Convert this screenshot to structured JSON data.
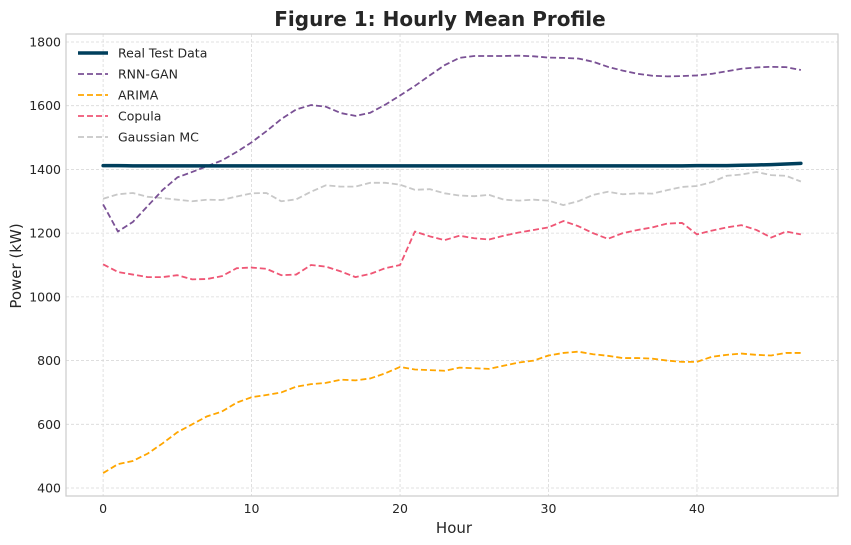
{
  "chart_data": {
    "type": "line",
    "title": "Figure 1: Hourly Mean Profile",
    "xlabel": "Hour",
    "ylabel": "Power (kW)",
    "xlim": [
      -2.5,
      49.5
    ],
    "ylim": [
      375,
      1825
    ],
    "xticks": [
      0,
      10,
      20,
      30,
      40
    ],
    "yticks": [
      400,
      600,
      800,
      1000,
      1200,
      1400,
      1600,
      1800
    ],
    "grid": true,
    "legend_position": "upper-left",
    "x": [
      0,
      1,
      2,
      3,
      4,
      5,
      6,
      7,
      8,
      9,
      10,
      11,
      12,
      13,
      14,
      15,
      16,
      17,
      18,
      19,
      20,
      21,
      22,
      23,
      24,
      25,
      26,
      27,
      28,
      29,
      30,
      31,
      32,
      33,
      34,
      35,
      36,
      37,
      38,
      39,
      40,
      41,
      42,
      43,
      44,
      45,
      46,
      47
    ],
    "series": [
      {
        "name": "Real Test Data",
        "color": "#003f5c",
        "style": "solid",
        "width": 3.5,
        "values": [
          1412,
          1412,
          1411,
          1411,
          1411,
          1411,
          1411,
          1411,
          1411,
          1411,
          1411,
          1411,
          1411,
          1411,
          1411,
          1411,
          1411,
          1411,
          1411,
          1411,
          1411,
          1411,
          1411,
          1411,
          1411,
          1411,
          1411,
          1411,
          1411,
          1411,
          1411,
          1411,
          1411,
          1411,
          1411,
          1411,
          1411,
          1411,
          1411,
          1411,
          1412,
          1412,
          1412,
          1413,
          1414,
          1415,
          1417,
          1419
        ]
      },
      {
        "name": "RNN-GAN",
        "color": "#7a5195",
        "style": "dashed",
        "width": 1.8,
        "values": [
          1290,
          1205,
          1235,
          1285,
          1335,
          1375,
          1392,
          1410,
          1428,
          1455,
          1485,
          1520,
          1558,
          1588,
          1602,
          1597,
          1577,
          1568,
          1578,
          1603,
          1632,
          1662,
          1695,
          1727,
          1750,
          1756,
          1756,
          1756,
          1757,
          1755,
          1751,
          1750,
          1748,
          1738,
          1722,
          1710,
          1700,
          1694,
          1692,
          1693,
          1695,
          1700,
          1708,
          1716,
          1720,
          1722,
          1721,
          1712
        ]
      },
      {
        "name": "ARIMA",
        "color": "#ffa600",
        "style": "dashed",
        "width": 1.8,
        "values": [
          447,
          475,
          485,
          508,
          540,
          575,
          600,
          625,
          640,
          668,
          685,
          692,
          700,
          718,
          726,
          730,
          740,
          738,
          744,
          760,
          780,
          772,
          770,
          768,
          778,
          776,
          774,
          784,
          794,
          800,
          816,
          824,
          828,
          820,
          815,
          808,
          808,
          806,
          800,
          796,
          796,
          812,
          818,
          822,
          818,
          816,
          824,
          824
        ]
      },
      {
        "name": "Copula",
        "color": "#ef5675",
        "style": "dashed",
        "width": 1.8,
        "values": [
          1102,
          1078,
          1070,
          1062,
          1062,
          1068,
          1055,
          1056,
          1065,
          1090,
          1092,
          1088,
          1068,
          1070,
          1100,
          1095,
          1080,
          1062,
          1072,
          1090,
          1100,
          1205,
          1190,
          1178,
          1192,
          1184,
          1180,
          1192,
          1202,
          1210,
          1218,
          1238,
          1222,
          1200,
          1182,
          1200,
          1210,
          1218,
          1230,
          1232,
          1196,
          1208,
          1218,
          1225,
          1210,
          1186,
          1205,
          1196
        ]
      },
      {
        "name": "Gaussian MC",
        "color": "#c8c8c8",
        "style": "dashed",
        "width": 1.8,
        "values": [
          1308,
          1322,
          1326,
          1314,
          1310,
          1305,
          1300,
          1305,
          1304,
          1315,
          1325,
          1326,
          1300,
          1306,
          1330,
          1350,
          1346,
          1346,
          1358,
          1358,
          1352,
          1336,
          1338,
          1325,
          1318,
          1316,
          1320,
          1305,
          1302,
          1305,
          1302,
          1288,
          1300,
          1320,
          1330,
          1322,
          1325,
          1324,
          1335,
          1345,
          1348,
          1360,
          1380,
          1384,
          1392,
          1382,
          1380,
          1362
        ]
      }
    ]
  }
}
